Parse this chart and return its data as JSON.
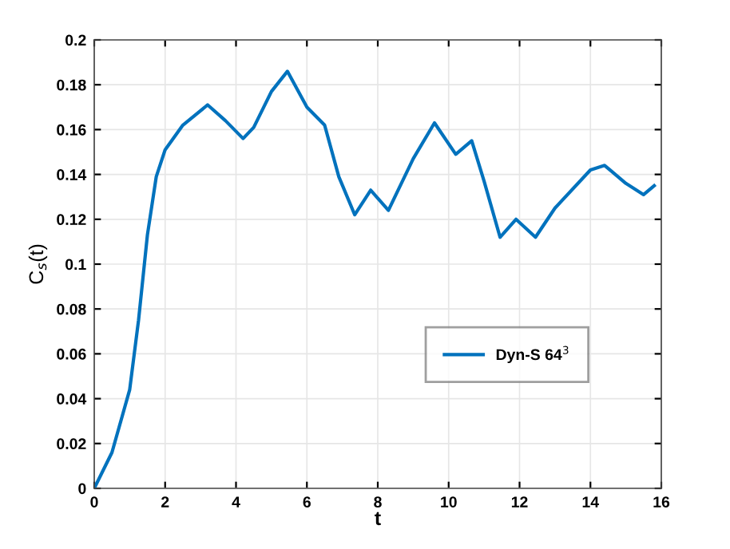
{
  "chart_data": {
    "type": "line",
    "xlabel": "t",
    "ylabel": "C$_{s}$(t)",
    "xlim": [
      0,
      16
    ],
    "ylim": [
      0,
      0.2
    ],
    "xticks": [
      0,
      2,
      4,
      6,
      8,
      10,
      12,
      14,
      16
    ],
    "yticks": [
      0,
      0.02,
      0.04,
      0.06,
      0.08,
      0.1,
      0.12,
      0.14,
      0.16,
      0.18,
      0.2
    ],
    "grid": true,
    "legend": "lower right",
    "line_style": "solid",
    "marker": "none",
    "series": [
      {
        "name": "Dyn-S 64$^{3}$",
        "color": "#0072bd",
        "x": [
          0,
          0.5,
          1,
          1.25,
          1.5,
          1.75,
          2,
          2.5,
          3.2,
          3.7,
          4.2,
          4.5,
          5,
          5.45,
          6,
          6.5,
          6.9,
          7.35,
          7.8,
          8.3,
          9,
          9.6,
          10.2,
          10.65,
          11,
          11.45,
          11.9,
          12.45,
          13,
          14,
          14.4,
          15,
          15.5,
          15.8
        ],
        "values": [
          0,
          0.016,
          0.044,
          0.075,
          0.113,
          0.139,
          0.151,
          0.162,
          0.171,
          0.164,
          0.156,
          0.161,
          0.177,
          0.186,
          0.17,
          0.162,
          0.139,
          0.122,
          0.133,
          0.124,
          0.147,
          0.163,
          0.149,
          0.155,
          0.137,
          0.112,
          0.12,
          0.112,
          0.125,
          0.142,
          0.144,
          0.136,
          0.131,
          0.135
        ]
      }
    ]
  }
}
